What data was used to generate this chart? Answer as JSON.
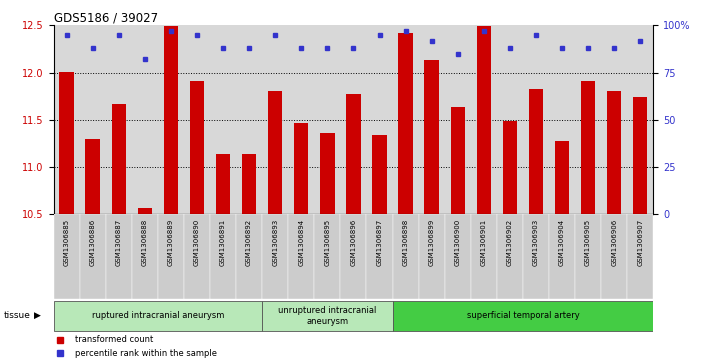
{
  "title": "GDS5186 / 39027",
  "samples": [
    "GSM1306885",
    "GSM1306886",
    "GSM1306887",
    "GSM1306888",
    "GSM1306889",
    "GSM1306890",
    "GSM1306891",
    "GSM1306892",
    "GSM1306893",
    "GSM1306894",
    "GSM1306895",
    "GSM1306896",
    "GSM1306897",
    "GSM1306898",
    "GSM1306899",
    "GSM1306900",
    "GSM1306901",
    "GSM1306902",
    "GSM1306903",
    "GSM1306904",
    "GSM1306905",
    "GSM1306906",
    "GSM1306907"
  ],
  "bar_values": [
    12.01,
    11.3,
    11.67,
    10.57,
    12.49,
    11.91,
    11.14,
    11.14,
    11.8,
    11.47,
    11.36,
    11.77,
    11.34,
    12.42,
    12.13,
    11.64,
    12.49,
    11.49,
    11.83,
    11.28,
    11.91,
    11.8,
    11.74
  ],
  "percentile_values": [
    95,
    88,
    95,
    82,
    97,
    95,
    88,
    88,
    95,
    88,
    88,
    88,
    95,
    97,
    92,
    85,
    97,
    88,
    95,
    88,
    88,
    88,
    92
  ],
  "ylim_left": [
    10.5,
    12.5
  ],
  "ylim_right": [
    0,
    100
  ],
  "yticks_left": [
    10.5,
    11.0,
    11.5,
    12.0,
    12.5
  ],
  "yticks_right": [
    0,
    25,
    50,
    75,
    100
  ],
  "ytick_labels_right": [
    "0",
    "25",
    "50",
    "75",
    "100%"
  ],
  "bar_color": "#cc0000",
  "dot_color": "#3333cc",
  "background_plot": "#d8d8d8",
  "groups": [
    {
      "label": "ruptured intracranial aneurysm",
      "start": 0,
      "end": 8
    },
    {
      "label": "unruptured intracranial\naneurysm",
      "start": 8,
      "end": 13
    },
    {
      "label": "superficial temporal artery",
      "start": 13,
      "end": 23
    }
  ],
  "group_colors": [
    "#b8e8b8",
    "#b8e8b8",
    "#44cc44"
  ],
  "legend_items": [
    {
      "label": "transformed count",
      "color": "#cc0000"
    },
    {
      "label": "percentile rank within the sample",
      "color": "#3333cc"
    }
  ]
}
